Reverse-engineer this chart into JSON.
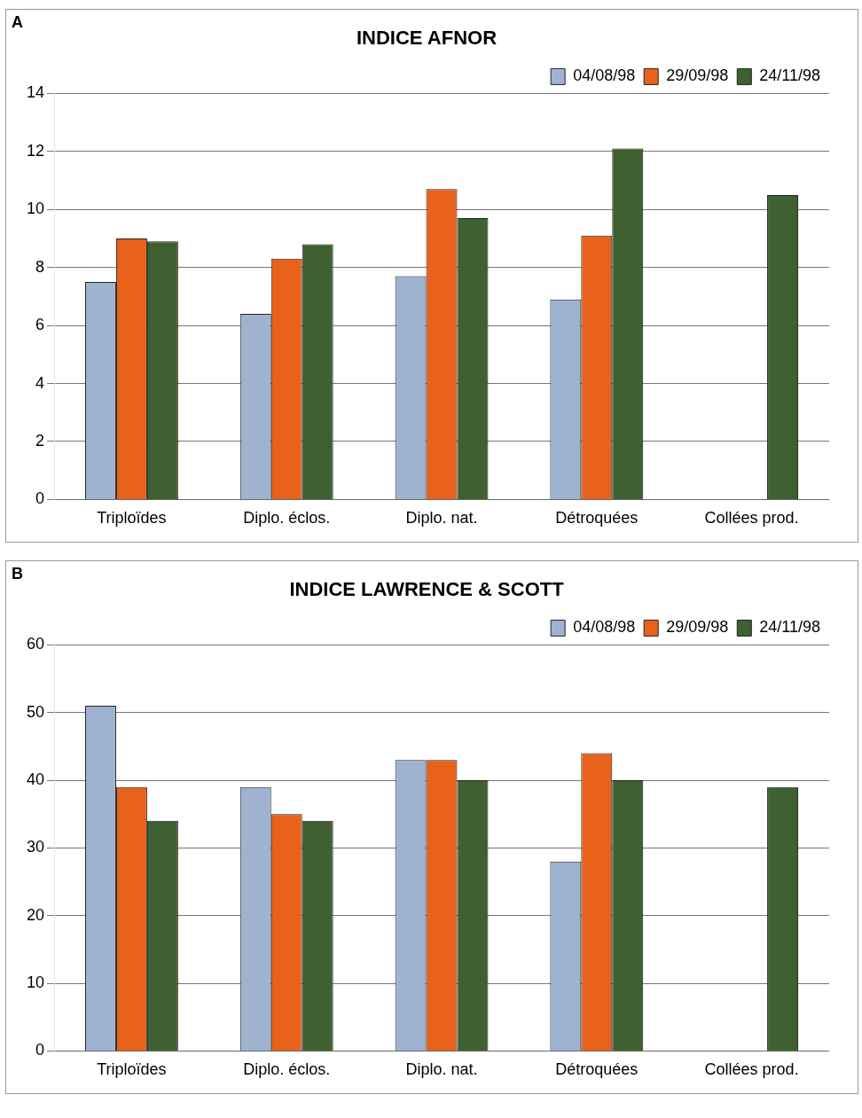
{
  "chart_data": [
    {
      "type": "bar",
      "title": "INDICE AFNOR",
      "annotations": [
        "A"
      ],
      "categories": [
        "Triploïdes",
        "Diplo. éclos.",
        "Diplo. nat.",
        "Détroquées",
        "Collées prod."
      ],
      "series": [
        {
          "name": "04/08/98",
          "color": "#9fb3d0",
          "values": [
            7.5,
            6.4,
            7.7,
            6.9,
            null
          ]
        },
        {
          "name": "29/09/98",
          "color": "#e8621c",
          "values": [
            9.0,
            8.3,
            10.7,
            9.1,
            null
          ]
        },
        {
          "name": "24/11/98",
          "color": "#3f6030",
          "values": [
            8.9,
            8.8,
            9.7,
            12.1,
            10.5
          ]
        }
      ],
      "ylim": [
        0,
        14
      ],
      "yticks": [
        0,
        2,
        4,
        6,
        8,
        10,
        12,
        14
      ],
      "grid": "y",
      "legend": "top right"
    },
    {
      "type": "bar",
      "title": "INDICE LAWRENCE & SCOTT",
      "annotations": [
        "B"
      ],
      "categories": [
        "Triploïdes",
        "Diplo. éclos.",
        "Diplo. nat.",
        "Détroquées",
        "Collées prod."
      ],
      "series": [
        {
          "name": "04/08/98",
          "color": "#9fb3d0",
          "values": [
            51,
            39,
            43,
            28,
            null
          ]
        },
        {
          "name": "29/09/98",
          "color": "#e8621c",
          "values": [
            39,
            35,
            43,
            44,
            null
          ]
        },
        {
          "name": "24/11/98",
          "color": "#3f6030",
          "values": [
            34,
            34,
            40,
            40,
            39
          ]
        }
      ],
      "ylim": [
        0,
        60
      ],
      "yticks": [
        0,
        10,
        20,
        30,
        40,
        50,
        60
      ],
      "grid": "y",
      "legend": "top right"
    }
  ]
}
